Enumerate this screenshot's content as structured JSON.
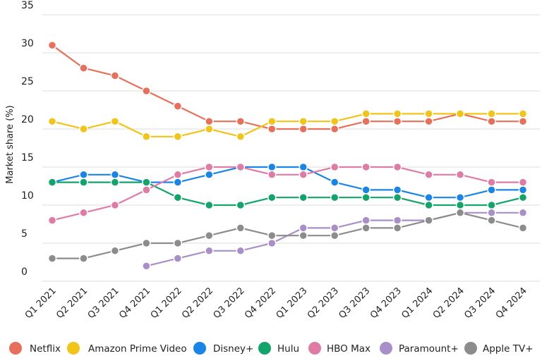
{
  "chart_data": {
    "type": "line",
    "title": "",
    "xlabel": "",
    "ylabel": "Market share (%)",
    "ylim": [
      0,
      35
    ],
    "yticks": [
      "0",
      "5",
      "10",
      "15",
      "20",
      "25",
      "30",
      "35"
    ],
    "grid": true,
    "legend_position": "bottom",
    "categories": [
      "Q1 2021",
      "Q2 2021",
      "Q3 2021",
      "Q4 2021",
      "Q1 2022",
      "Q2 2022",
      "Q3 2022",
      "Q4 2022",
      "Q1 2023",
      "Q2 2023",
      "Q3 2023",
      "Q4 2023",
      "Q1 2024",
      "Q2 2024",
      "Q3 2024",
      "Q4 2024"
    ],
    "series": [
      {
        "name": "Netflix",
        "color": "#E8705A",
        "values": [
          31,
          28,
          27,
          25,
          23,
          21,
          21,
          20,
          20,
          20,
          21,
          21,
          21,
          22,
          21,
          21
        ]
      },
      {
        "name": "Amazon Prime Video",
        "color": "#F2C417",
        "values": [
          21,
          20,
          21,
          19,
          19,
          20,
          19,
          21,
          21,
          21,
          22,
          22,
          22,
          22,
          22,
          22
        ]
      },
      {
        "name": "Disney+",
        "color": "#1A85E8",
        "values": [
          13,
          14,
          14,
          13,
          13,
          14,
          15,
          15,
          15,
          13,
          12,
          12,
          11,
          11,
          12,
          12
        ]
      },
      {
        "name": "Hulu",
        "color": "#12A46A",
        "values": [
          13,
          13,
          13,
          13,
          11,
          10,
          10,
          11,
          11,
          11,
          11,
          11,
          10,
          10,
          10,
          11
        ]
      },
      {
        "name": "HBO Max",
        "color": "#E07BA5",
        "values": [
          8,
          9,
          10,
          12,
          14,
          15,
          15,
          14,
          14,
          15,
          15,
          15,
          14,
          14,
          13,
          13
        ]
      },
      {
        "name": "Paramount+",
        "color": "#A98FC8",
        "values": [
          null,
          null,
          null,
          2,
          3,
          4,
          4,
          5,
          7,
          7,
          8,
          8,
          8,
          9,
          9,
          9
        ]
      },
      {
        "name": "Apple TV+",
        "color": "#8C8C8C",
        "values": [
          3,
          3,
          4,
          5,
          5,
          6,
          7,
          6,
          6,
          6,
          7,
          7,
          8,
          9,
          8,
          7
        ]
      }
    ]
  }
}
